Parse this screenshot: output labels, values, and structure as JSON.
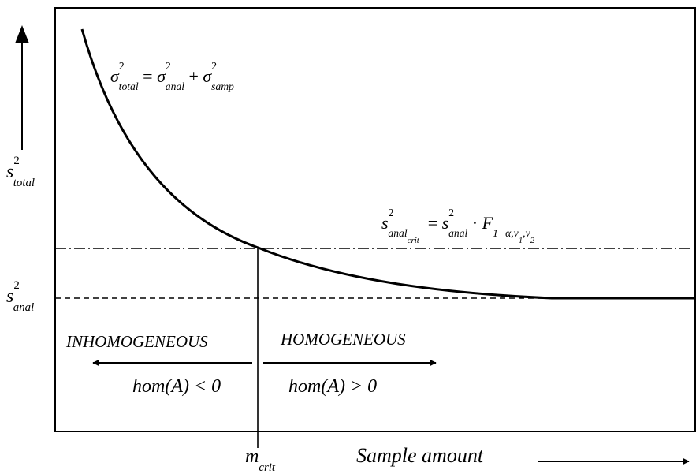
{
  "y_axis": {
    "symbol": "s",
    "exponent": "2",
    "subscript": "total"
  },
  "baseline_label": {
    "symbol": "s",
    "exponent": "2",
    "subscript": "anal"
  },
  "curve_equation": {
    "lhs_symbol": "σ",
    "lhs_exp": "2",
    "lhs_sub": "total",
    "equals": "=",
    "t1_symbol": "σ",
    "t1_exp": "2",
    "t1_sub": "anal",
    "plus": "+",
    "t2_symbol": "σ",
    "t2_exp": "2",
    "t2_sub": "samp"
  },
  "critical_equation": {
    "lhs_symbol": "s",
    "lhs_exp": "2",
    "lhs_sub": "anal",
    "lhs_subsub": "crit",
    "equals": "=",
    "rhs_symbol": "s",
    "rhs_exp": "2",
    "rhs_sub": "anal",
    "dot": "·",
    "f_symbol": "F",
    "f_sub": "1−α,ν",
    "nu1": "1",
    "comma": ",ν",
    "nu2": "2"
  },
  "regions": {
    "left_title": "INHOMOGENEOUS",
    "left_condition": "hom(A) < 0",
    "right_title": "HOMOGENEOUS",
    "right_condition": "hom(A) > 0"
  },
  "x_marker": {
    "symbol": "m",
    "subscript": "crit"
  },
  "x_axis": {
    "label": "Sample amount"
  }
}
